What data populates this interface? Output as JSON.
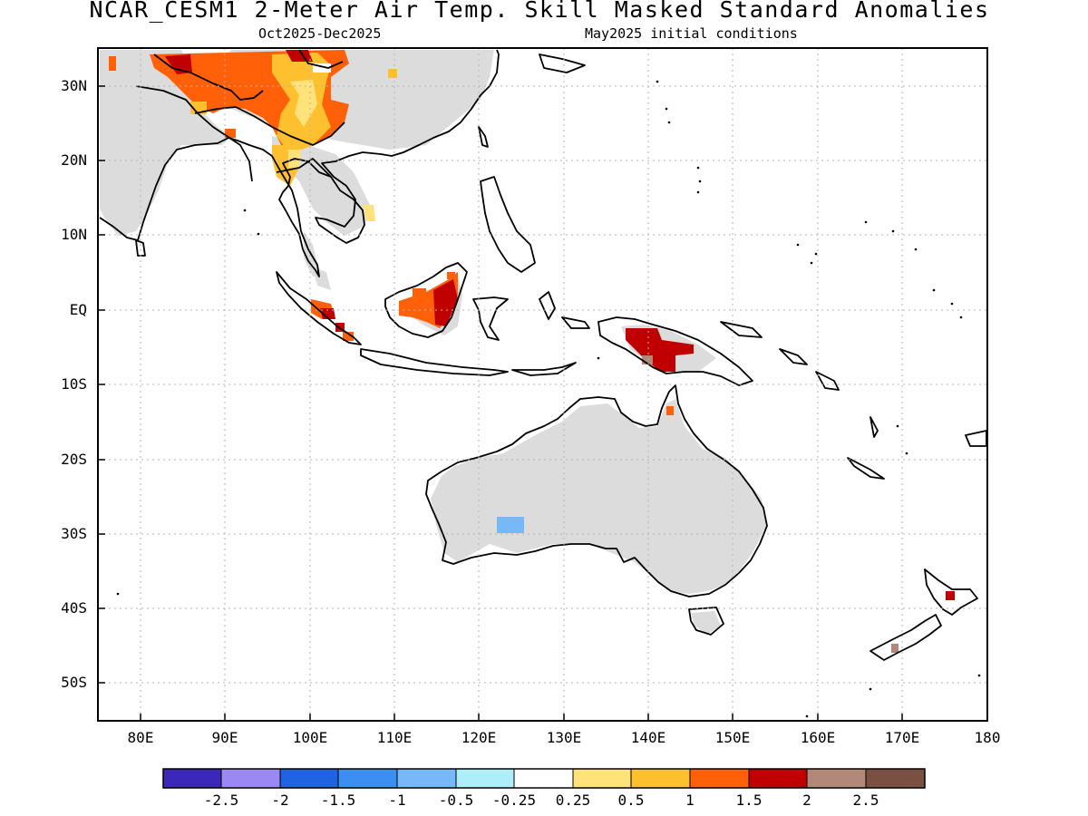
{
  "title": "NCAR_CESM1 2-Meter Air Temp. Skill Masked Standard Anomalies",
  "subtitle_left": "Oct2025-Dec2025",
  "subtitle_right": "May2025 initial conditions",
  "lat_labels": [
    "30N",
    "20N",
    "10N",
    "EQ",
    "10S",
    "20S",
    "30S",
    "40S",
    "50S"
  ],
  "lon_labels": [
    "80E",
    "90E",
    "100E",
    "110E",
    "120E",
    "130E",
    "140E",
    "150E",
    "160E",
    "170E",
    "180"
  ],
  "colorbar": {
    "colors": [
      "#3b28b8",
      "#9b88f2",
      "#1f62e2",
      "#3a8ff0",
      "#76b8f8",
      "#aeeef8",
      "#ffffff",
      "#ffe37a",
      "#ffc030",
      "#ff6008",
      "#c00000",
      "#b28878",
      "#7a5042"
    ],
    "labels": [
      "-2.5",
      "-2",
      "-1.5",
      "-1",
      "-0.5",
      "-0.25",
      "0.25",
      "0.5",
      "1",
      "1.5",
      "2",
      "2.5"
    ]
  },
  "map_colors": {
    "land_masked": "#dcdcdc",
    "coast": "#000000",
    "grid": "#b4b4b4"
  }
}
